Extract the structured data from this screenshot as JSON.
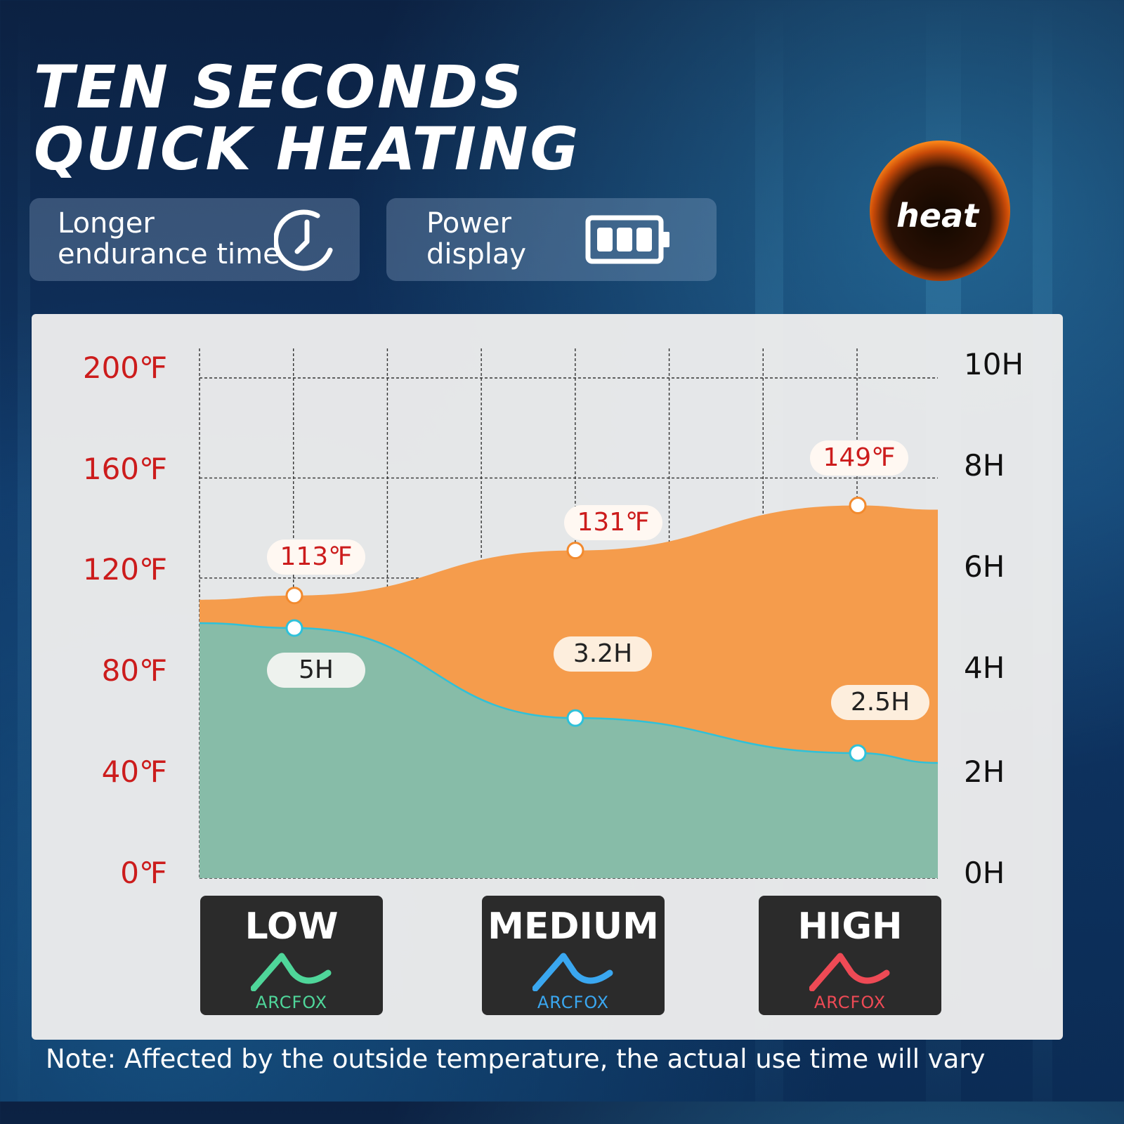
{
  "header": {
    "title_line1": "TEN SECONDS",
    "title_line2": "QUICK HEATING",
    "features": [
      {
        "line1": "Longer",
        "line2": "endurance time",
        "icon": "clock-icon"
      },
      {
        "line1": "Power",
        "line2": "display",
        "icon": "battery-icon"
      }
    ],
    "badge_label": "heat"
  },
  "chart_data": {
    "type": "area",
    "categories": [
      "LOW",
      "MEDIUM",
      "HIGH"
    ],
    "y_left": {
      "ticks": [
        "200℉",
        "160℉",
        "120℉",
        "80℉",
        "40℉",
        "0℉"
      ],
      "ylim": [
        0,
        200
      ]
    },
    "y_right": {
      "ticks": [
        "10H",
        "8H",
        "6H",
        "4H",
        "2H",
        "0H"
      ],
      "ylim": [
        0,
        10
      ]
    },
    "series": [
      {
        "values": [
          113,
          131,
          149
        ],
        "labels": [
          "113℉",
          "131℉",
          "149℉"
        ],
        "color": "#f59c4c"
      },
      {
        "values": [
          5,
          3.2,
          2.5
        ],
        "labels": [
          "5H",
          "3.2H",
          "2.5H"
        ],
        "color": "#7dbfb0"
      }
    ],
    "grid": true
  },
  "levels": [
    {
      "name": "LOW",
      "brand": "ARCFOX",
      "color": "#4fd69a"
    },
    {
      "name": "MEDIUM",
      "brand": "ARCFOX",
      "color": "#3aa7f0"
    },
    {
      "name": "HIGH",
      "brand": "ARCFOX",
      "color": "#ee4a55"
    }
  ],
  "note": "Note: Affected by the outside temperature, the actual use time will vary"
}
